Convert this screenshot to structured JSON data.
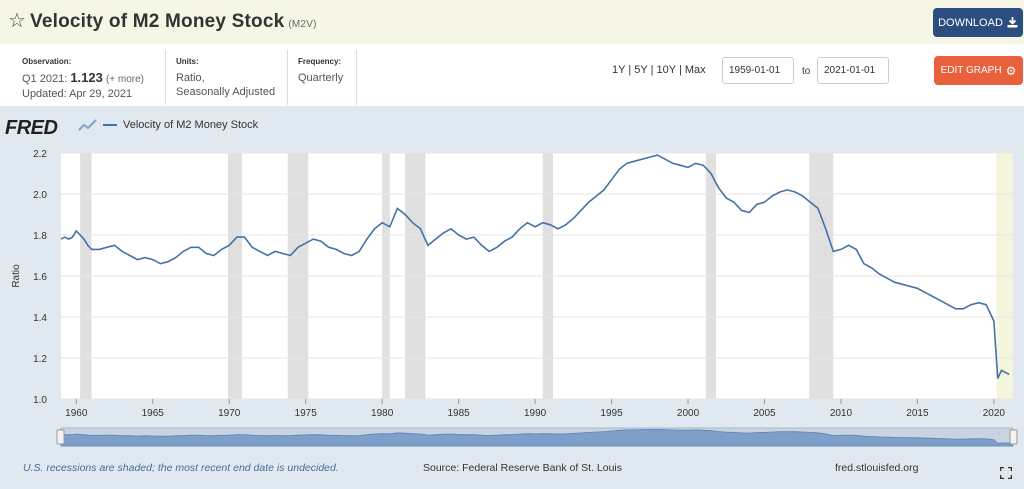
{
  "header": {
    "title": "Velocity of M2 Money Stock",
    "series_code": "(M2V)",
    "download_label": "DOWNLOAD",
    "star_icon": "star-outline-icon",
    "download_icon": "download-icon"
  },
  "meta": {
    "observation_label": "Observation:",
    "observation_period": "Q1 2021:",
    "observation_value": "1.123",
    "more_label": "(+ more)",
    "updated": "Updated: Apr 29, 2021",
    "units_label": "Units:",
    "units_line1": "Ratio,",
    "units_line2": "Seasonally Adjusted",
    "frequency_label": "Frequency:",
    "frequency_value": "Quarterly",
    "range_1y": "1Y",
    "range_5y": "5Y",
    "range_10y": "10Y",
    "range_max": "Max",
    "range_sep": "|",
    "start_date": "1959-01-01",
    "to_label": "to",
    "end_date": "2021-01-01",
    "edit_label": "EDIT GRAPH",
    "edit_icon": "gear-icon"
  },
  "chart": {
    "logo": "FRED",
    "legend_label": "Velocity of M2 Money Stock",
    "footer_note": "U.S. recessions are shaded; the most recent end date is undecided.",
    "footer_source": "Source: Federal Reserve Bank of St. Louis",
    "footer_site": "fred.stlouisfed.org"
  },
  "chart_data": {
    "type": "line",
    "ylabel": "Ratio",
    "ylim": [
      1.0,
      2.2
    ],
    "yticks": [
      1.0,
      1.2,
      1.4,
      1.6,
      1.8,
      2.0,
      2.2
    ],
    "xlim": [
      1959.0,
      2021.25
    ],
    "xticks": [
      1960,
      1965,
      1970,
      1975,
      1980,
      1985,
      1990,
      1995,
      2000,
      2005,
      2010,
      2015,
      2020
    ],
    "grid": true,
    "line_color": "#4572a7",
    "recession_color": "#e0e0e0",
    "recessions": [
      [
        1960.25,
        1961.0
      ],
      [
        1969.92,
        1970.83
      ],
      [
        1973.83,
        1975.17
      ],
      [
        1980.0,
        1980.5
      ],
      [
        1981.5,
        1982.83
      ],
      [
        1990.5,
        1991.17
      ],
      [
        2001.17,
        2001.83
      ],
      [
        2007.92,
        2009.5
      ],
      [
        2020.17,
        2021.25
      ]
    ],
    "series": [
      {
        "name": "Velocity of M2 Money Stock",
        "points": [
          [
            1959.0,
            1.78
          ],
          [
            1959.25,
            1.79
          ],
          [
            1959.5,
            1.78
          ],
          [
            1959.75,
            1.79
          ],
          [
            1960.0,
            1.82
          ],
          [
            1960.25,
            1.8
          ],
          [
            1960.5,
            1.78
          ],
          [
            1960.75,
            1.75
          ],
          [
            1961.0,
            1.73
          ],
          [
            1961.5,
            1.73
          ],
          [
            1962.0,
            1.74
          ],
          [
            1962.5,
            1.75
          ],
          [
            1963.0,
            1.72
          ],
          [
            1963.5,
            1.7
          ],
          [
            1964.0,
            1.68
          ],
          [
            1964.5,
            1.69
          ],
          [
            1965.0,
            1.68
          ],
          [
            1965.5,
            1.66
          ],
          [
            1966.0,
            1.67
          ],
          [
            1966.5,
            1.69
          ],
          [
            1967.0,
            1.72
          ],
          [
            1967.5,
            1.74
          ],
          [
            1968.0,
            1.74
          ],
          [
            1968.5,
            1.71
          ],
          [
            1969.0,
            1.7
          ],
          [
            1969.5,
            1.73
          ],
          [
            1970.0,
            1.75
          ],
          [
            1970.5,
            1.79
          ],
          [
            1971.0,
            1.79
          ],
          [
            1971.5,
            1.74
          ],
          [
            1972.0,
            1.72
          ],
          [
            1972.5,
            1.7
          ],
          [
            1973.0,
            1.72
          ],
          [
            1973.5,
            1.71
          ],
          [
            1974.0,
            1.7
          ],
          [
            1974.5,
            1.74
          ],
          [
            1975.0,
            1.76
          ],
          [
            1975.5,
            1.78
          ],
          [
            1976.0,
            1.77
          ],
          [
            1976.5,
            1.74
          ],
          [
            1977.0,
            1.73
          ],
          [
            1977.5,
            1.71
          ],
          [
            1978.0,
            1.7
          ],
          [
            1978.5,
            1.72
          ],
          [
            1979.0,
            1.78
          ],
          [
            1979.5,
            1.83
          ],
          [
            1980.0,
            1.86
          ],
          [
            1980.5,
            1.84
          ],
          [
            1981.0,
            1.93
          ],
          [
            1981.5,
            1.9
          ],
          [
            1982.0,
            1.86
          ],
          [
            1982.5,
            1.83
          ],
          [
            1983.0,
            1.75
          ],
          [
            1983.5,
            1.78
          ],
          [
            1984.0,
            1.81
          ],
          [
            1984.5,
            1.83
          ],
          [
            1985.0,
            1.8
          ],
          [
            1985.5,
            1.78
          ],
          [
            1986.0,
            1.79
          ],
          [
            1986.5,
            1.75
          ],
          [
            1987.0,
            1.72
          ],
          [
            1987.5,
            1.74
          ],
          [
            1988.0,
            1.77
          ],
          [
            1988.5,
            1.79
          ],
          [
            1989.0,
            1.83
          ],
          [
            1989.5,
            1.86
          ],
          [
            1990.0,
            1.84
          ],
          [
            1990.5,
            1.86
          ],
          [
            1991.0,
            1.85
          ],
          [
            1991.5,
            1.83
          ],
          [
            1992.0,
            1.85
          ],
          [
            1992.5,
            1.88
          ],
          [
            1993.0,
            1.92
          ],
          [
            1993.5,
            1.96
          ],
          [
            1994.0,
            1.99
          ],
          [
            1994.5,
            2.02
          ],
          [
            1995.0,
            2.07
          ],
          [
            1995.5,
            2.12
          ],
          [
            1996.0,
            2.15
          ],
          [
            1996.5,
            2.16
          ],
          [
            1997.0,
            2.17
          ],
          [
            1997.5,
            2.18
          ],
          [
            1998.0,
            2.19
          ],
          [
            1998.5,
            2.17
          ],
          [
            1999.0,
            2.15
          ],
          [
            1999.5,
            2.14
          ],
          [
            2000.0,
            2.13
          ],
          [
            2000.5,
            2.15
          ],
          [
            2001.0,
            2.14
          ],
          [
            2001.5,
            2.1
          ],
          [
            2002.0,
            2.03
          ],
          [
            2002.5,
            1.98
          ],
          [
            2003.0,
            1.96
          ],
          [
            2003.5,
            1.92
          ],
          [
            2004.0,
            1.91
          ],
          [
            2004.5,
            1.95
          ],
          [
            2005.0,
            1.96
          ],
          [
            2005.5,
            1.99
          ],
          [
            2006.0,
            2.01
          ],
          [
            2006.5,
            2.02
          ],
          [
            2007.0,
            2.01
          ],
          [
            2007.5,
            1.99
          ],
          [
            2008.0,
            1.96
          ],
          [
            2008.5,
            1.93
          ],
          [
            2009.0,
            1.83
          ],
          [
            2009.5,
            1.72
          ],
          [
            2010.0,
            1.73
          ],
          [
            2010.5,
            1.75
          ],
          [
            2011.0,
            1.73
          ],
          [
            2011.5,
            1.66
          ],
          [
            2012.0,
            1.64
          ],
          [
            2012.5,
            1.61
          ],
          [
            2013.0,
            1.59
          ],
          [
            2013.5,
            1.57
          ],
          [
            2014.0,
            1.56
          ],
          [
            2014.5,
            1.55
          ],
          [
            2015.0,
            1.54
          ],
          [
            2015.5,
            1.52
          ],
          [
            2016.0,
            1.5
          ],
          [
            2016.5,
            1.48
          ],
          [
            2017.0,
            1.46
          ],
          [
            2017.5,
            1.44
          ],
          [
            2018.0,
            1.44
          ],
          [
            2018.5,
            1.46
          ],
          [
            2019.0,
            1.47
          ],
          [
            2019.5,
            1.46
          ],
          [
            2020.0,
            1.38
          ],
          [
            2020.25,
            1.1
          ],
          [
            2020.5,
            1.14
          ],
          [
            2020.75,
            1.13
          ],
          [
            2021.0,
            1.12
          ]
        ]
      }
    ]
  }
}
